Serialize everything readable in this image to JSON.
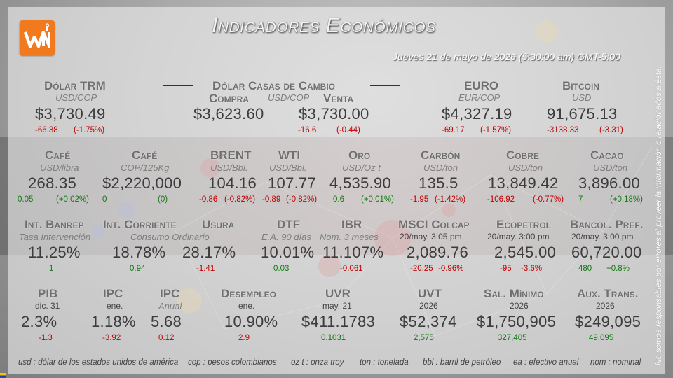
{
  "header": {
    "title": "Indicadores Económicos",
    "date": "Jueves 21 de mayo de 2026 (5:30:00 am) GMT-5:00"
  },
  "row1": {
    "dolar_trm": {
      "label": "Dólar TRM",
      "unit": "USD/COP",
      "value": "$3,730.49",
      "change": "-66.38",
      "pct": "(-1.75%)"
    },
    "casas": {
      "label": "Dólar Casas de Cambio",
      "unit": "USD/COP",
      "compra_label": "Compra",
      "venta_label": "Venta",
      "compra_value": "$3,623.60",
      "venta_value": "$3,730.00",
      "venta_change": "-16.6",
      "venta_pct": "(-0.44)"
    },
    "euro": {
      "label": "EURO",
      "unit": "EUR/COP",
      "value": "$4,327.19",
      "change": "-69.17",
      "pct": "(-1.57%)"
    },
    "bitcoin": {
      "label": "Bitcoin",
      "unit": "USD",
      "value": "91,675.13",
      "change": "-3138.33",
      "pct": "(-3.31)"
    }
  },
  "row2": [
    {
      "label": "Café",
      "unit": "USD/libra",
      "value": "268.35",
      "change": "0.05",
      "pct": "(+0.02%)",
      "color": "green"
    },
    {
      "label": "Café",
      "unit": "COP/125Kg",
      "value": "$2,220,000",
      "change": "0",
      "pct": "(0)",
      "color": "green"
    },
    {
      "label": "BRENT",
      "unit": "USD/Bbl.",
      "value": "104.16",
      "change": "-0.86",
      "pct": "(-0.82%)",
      "color": "red"
    },
    {
      "label": "WTI",
      "unit": "USD/Bbl.",
      "value": "107.77",
      "change": "-0.89",
      "pct": "(-0.82%)",
      "color": "red"
    },
    {
      "label": "Oro",
      "unit": "USD/Oz t",
      "value": "4,535.90",
      "change": "0.6",
      "pct": "(+0.01%)",
      "color": "green"
    },
    {
      "label": "Carbón",
      "unit": "USD/ton",
      "value": "135.5",
      "change": "-1.95",
      "pct": "(-1.42%)",
      "color": "red"
    },
    {
      "label": "Cobre",
      "unit": "USD/ton",
      "value": "13,849.42",
      "change": "-106.92",
      "pct": "(-0.77%)",
      "color": "red"
    },
    {
      "label": "Cacao",
      "unit": "USD/ton",
      "value": "3,896.00",
      "change": "7",
      "pct": "(+0.18%)",
      "color": "green"
    }
  ],
  "row3": [
    {
      "label": "Int. Banrep",
      "unit": "Tasa Intervención",
      "value": "11.25%",
      "change": "1",
      "color": "green"
    },
    {
      "label": "Int. Corriente",
      "unit": "Consumo Ordinario",
      "value": "18.78%",
      "change": "0.94",
      "color": "green"
    },
    {
      "label": "Usura",
      "unit": "",
      "value": "28.17%",
      "change": "-1.41",
      "color": "red"
    },
    {
      "label": "DTF",
      "unit": "E.A. 90 días",
      "value": "10.01%",
      "change": "0.03",
      "color": "green"
    },
    {
      "label": "IBR",
      "unit": "Nom. 3 meses",
      "value": "11.107%",
      "change": "-0.061",
      "color": "red"
    },
    {
      "label": "MSCI Colcap",
      "unit": "20/may. 3:05 pm",
      "value": "2,089.76",
      "change": "-20.25",
      "pct": "-0.96%",
      "color": "red"
    },
    {
      "label": "Ecopetrol",
      "unit": "20/may. 3:00 pm",
      "value": "2,545.00",
      "change": "-95",
      "pct": "-3.6%",
      "color": "red"
    },
    {
      "label": "Bancol. Pref.",
      "unit": "20/may. 3:00 pm",
      "value": "60,720.00",
      "change": "480",
      "pct": "+0.8%",
      "color": "green"
    }
  ],
  "row4": [
    {
      "label": "PIB",
      "unit": "dic. 31",
      "value": "2.3%",
      "change": "-1.3",
      "color": "red"
    },
    {
      "label": "IPC",
      "unit": "ene.",
      "value": "1.18%",
      "change": "-3.92",
      "color": "red"
    },
    {
      "label": "IPC",
      "unit": "Anual",
      "value": "5.68",
      "change": "0.12",
      "color": "red"
    },
    {
      "label": "Desempleo",
      "unit": "ene.",
      "value": "10.90%",
      "change": "2.9",
      "color": "red"
    },
    {
      "label": "UVR",
      "unit": "may. 21",
      "value": "$411.1783",
      "change": "0.1031",
      "color": "green"
    },
    {
      "label": "UVT",
      "unit": "2026",
      "value": "$52,374",
      "change": "2,575",
      "color": "green"
    },
    {
      "label": "Sal. Mínimo",
      "unit": "2026",
      "value": "$1,750,905",
      "change": "327,405",
      "color": "green"
    },
    {
      "label": "Aux. Trans.",
      "unit": "2026",
      "value": "$249,095",
      "change": "49,095",
      "color": "green"
    }
  ],
  "footer": [
    "usd : dólar de los estados unidos de américa",
    "cop : pesos colombianos",
    "oz t : onza troy",
    "ton : tonelada",
    "bbl : barril de petróleo",
    "ea : efectivo anual",
    "nom : nominal"
  ],
  "disclaimer": "No somos responsables por errores al proveer la información o relacionados a ésta.",
  "colors": {
    "accent": "#f27a1e",
    "up": "#107a10",
    "down": "#c00000"
  },
  "icons": {
    "logo": "wn-logo-icon",
    "flag": "colombia-flag-icon"
  }
}
